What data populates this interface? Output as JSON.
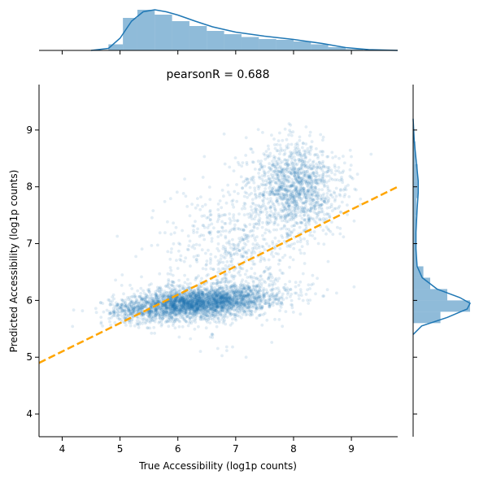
{
  "chart_data": {
    "type": "scatter",
    "title": "pearsonR = 0.688",
    "xlabel": "True Accessibility (log1p counts)",
    "ylabel": "Predicted Accessibility (log1p counts)",
    "xlim": [
      3.6,
      9.8
    ],
    "ylim": [
      3.6,
      9.8
    ],
    "xticks": [
      "4",
      "5",
      "6",
      "7",
      "8",
      "9"
    ],
    "yticks": [
      "4",
      "5",
      "6",
      "7",
      "8",
      "9"
    ],
    "grid": false,
    "point_color": "#1f77b4",
    "fit_line": {
      "color": "#ffa500",
      "style": "dashed",
      "slope": 0.5,
      "intercept": 3.1
    },
    "clusters": [
      {
        "name": "",
        "center_x": 6.3,
        "center_y": 5.95,
        "spread_x": 0.7,
        "spread_y": 0.14,
        "share": 0.62
      },
      {
        "name": "",
        "center_x": 8.05,
        "center_y": 8.0,
        "spread_x": 0.38,
        "spread_y": 0.4,
        "share": 0.24
      },
      {
        "name": "",
        "center_x": 6.9,
        "center_y": 6.9,
        "spread_x": 0.7,
        "spread_y": 0.65,
        "share": 0.14
      }
    ],
    "marginal_x": {
      "bin_edges": [
        4.8,
        5.05,
        5.3,
        5.6,
        5.9,
        6.2,
        6.5,
        6.8,
        7.1,
        7.4,
        7.7,
        8.0,
        8.3,
        8.6,
        8.9,
        9.2
      ],
      "heights": [
        0.15,
        0.8,
        1.0,
        0.88,
        0.72,
        0.6,
        0.48,
        0.4,
        0.33,
        0.28,
        0.26,
        0.22,
        0.15,
        0.08,
        0.03
      ],
      "kde_x": [
        4.5,
        4.8,
        5.0,
        5.2,
        5.4,
        5.6,
        5.8,
        6.0,
        6.3,
        6.6,
        7.0,
        7.5,
        8.0,
        8.5,
        8.9,
        9.3,
        9.8
      ],
      "kde_y": [
        0.0,
        0.05,
        0.3,
        0.72,
        0.95,
        1.0,
        0.95,
        0.87,
        0.72,
        0.58,
        0.45,
        0.35,
        0.27,
        0.17,
        0.07,
        0.02,
        0.0
      ]
    },
    "marginal_y": {
      "bin_edges": [
        5.6,
        5.8,
        6.0,
        6.2,
        6.4,
        6.6,
        6.9,
        7.2,
        7.5,
        7.8,
        8.1,
        8.4,
        8.8
      ],
      "heights": [
        0.48,
        1.0,
        0.6,
        0.3,
        0.18,
        0.06,
        0.05,
        0.05,
        0.06,
        0.08,
        0.08,
        0.04
      ],
      "kde_y": [
        5.4,
        5.55,
        5.7,
        5.85,
        5.95,
        6.05,
        6.2,
        6.4,
        6.6,
        6.9,
        7.2,
        7.6,
        7.9,
        8.1,
        8.4,
        8.8,
        9.2
      ],
      "kde_x": [
        0.0,
        0.15,
        0.6,
        0.95,
        1.0,
        0.82,
        0.42,
        0.16,
        0.07,
        0.05,
        0.05,
        0.07,
        0.09,
        0.09,
        0.06,
        0.02,
        0.0
      ]
    }
  }
}
